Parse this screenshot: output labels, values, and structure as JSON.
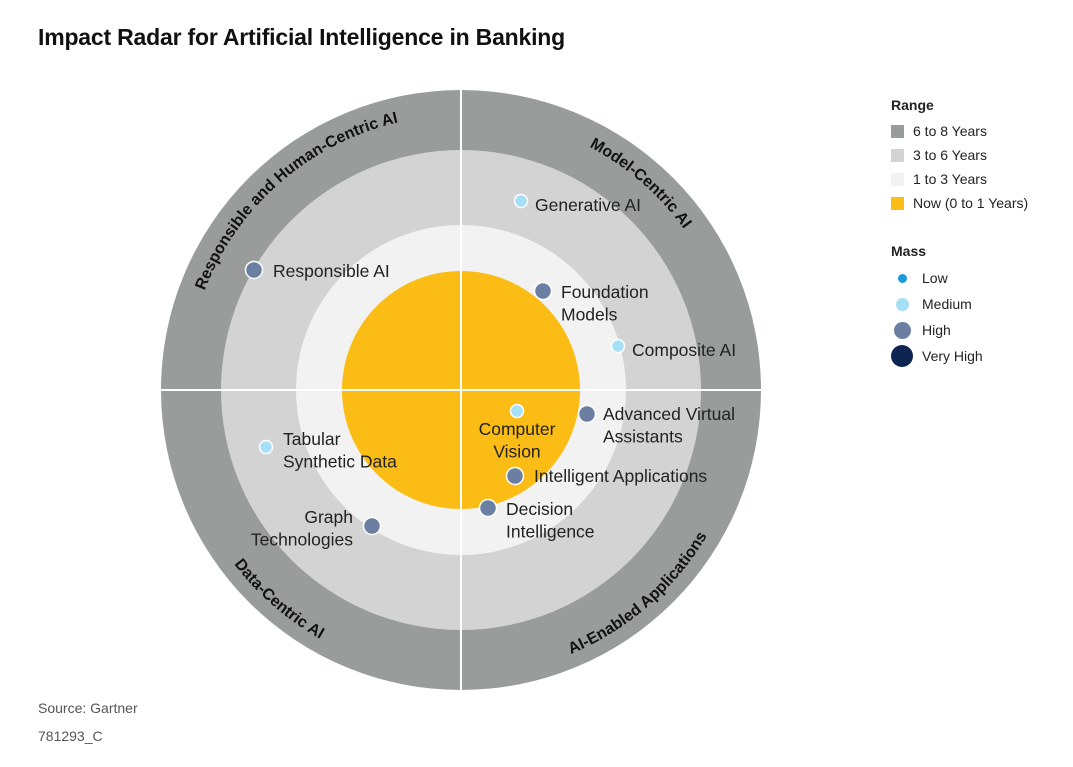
{
  "title": "Impact Radar for Artificial Intelligence in Banking",
  "footer": {
    "source": "Source: Gartner",
    "code": "781293_C"
  },
  "colors": {
    "ring_6_8": "#9a9c9b",
    "ring_3_6": "#d3d3d3",
    "ring_1_3": "#f2f2f2",
    "ring_now": "#fbbd15",
    "divider": "#ffffff",
    "dot_low": "#1a9bd7",
    "dot_medium": "#a6e0f7",
    "dot_high": "#6b7fa3",
    "dot_very_high": "#0d2651"
  },
  "legend": {
    "range_title": "Range",
    "range": [
      {
        "label": "6 to 8 Years",
        "color": "#9a9c9b"
      },
      {
        "label": "3 to 6 Years",
        "color": "#d3d3d3"
      },
      {
        "label": "1 to 3 Years",
        "color": "#f2f2f2"
      },
      {
        "label": "Now (0 to 1 Years)",
        "color": "#fbbd15"
      }
    ],
    "mass_title": "Mass",
    "mass": [
      {
        "label": "Low",
        "level": "low"
      },
      {
        "label": "Medium",
        "level": "medium"
      },
      {
        "label": "High",
        "level": "high"
      },
      {
        "label": "Very High",
        "level": "very_high"
      }
    ]
  },
  "quadrants": [
    {
      "id": "responsible",
      "label": "Responsible and Human-Centric AI",
      "position": "top-left"
    },
    {
      "id": "model",
      "label": "Model-Centric AI",
      "position": "top-right"
    },
    {
      "id": "data",
      "label": "Data-Centric AI",
      "position": "bottom-left"
    },
    {
      "id": "apps",
      "label": "AI-Enabled Applications",
      "position": "bottom-right"
    }
  ],
  "technologies": [
    {
      "name": "Generative AI",
      "lines": [
        "Generative AI"
      ],
      "quadrant": "model",
      "range": "3 to 6 Years",
      "mass": "medium"
    },
    {
      "name": "Foundation Models",
      "lines": [
        "Foundation",
        "Models"
      ],
      "quadrant": "model",
      "range": "1 to 3 Years",
      "mass": "high"
    },
    {
      "name": "Composite AI",
      "lines": [
        "Composite AI"
      ],
      "quadrant": "model",
      "range": "3 to 6 Years",
      "mass": "medium"
    },
    {
      "name": "Responsible AI",
      "lines": [
        "Responsible AI"
      ],
      "quadrant": "responsible",
      "range": "3 to 6 Years",
      "mass": "high"
    },
    {
      "name": "Computer Vision",
      "lines": [
        "Computer",
        "Vision"
      ],
      "quadrant": "apps",
      "range": "Now (0 to 1 Years)",
      "mass": "medium"
    },
    {
      "name": "Advanced Virtual Assistants",
      "lines": [
        "Advanced Virtual",
        "Assistants"
      ],
      "quadrant": "apps",
      "range": "1 to 3 Years",
      "mass": "high"
    },
    {
      "name": "Intelligent Applications",
      "lines": [
        "Intelligent Applications"
      ],
      "quadrant": "apps",
      "range": "Now (0 to 1 Years)",
      "mass": "high"
    },
    {
      "name": "Decision Intelligence",
      "lines": [
        "Decision",
        "Intelligence"
      ],
      "quadrant": "apps",
      "range": "1 to 3 Years",
      "mass": "high"
    },
    {
      "name": "Tabular Synthetic Data",
      "lines": [
        "Tabular",
        "Synthetic Data"
      ],
      "quadrant": "data",
      "range": "3 to 6 Years",
      "mass": "medium"
    },
    {
      "name": "Graph Technologies",
      "lines": [
        "Graph",
        "Technologies"
      ],
      "quadrant": "data",
      "range": "1 to 3 Years",
      "mass": "high"
    }
  ]
}
